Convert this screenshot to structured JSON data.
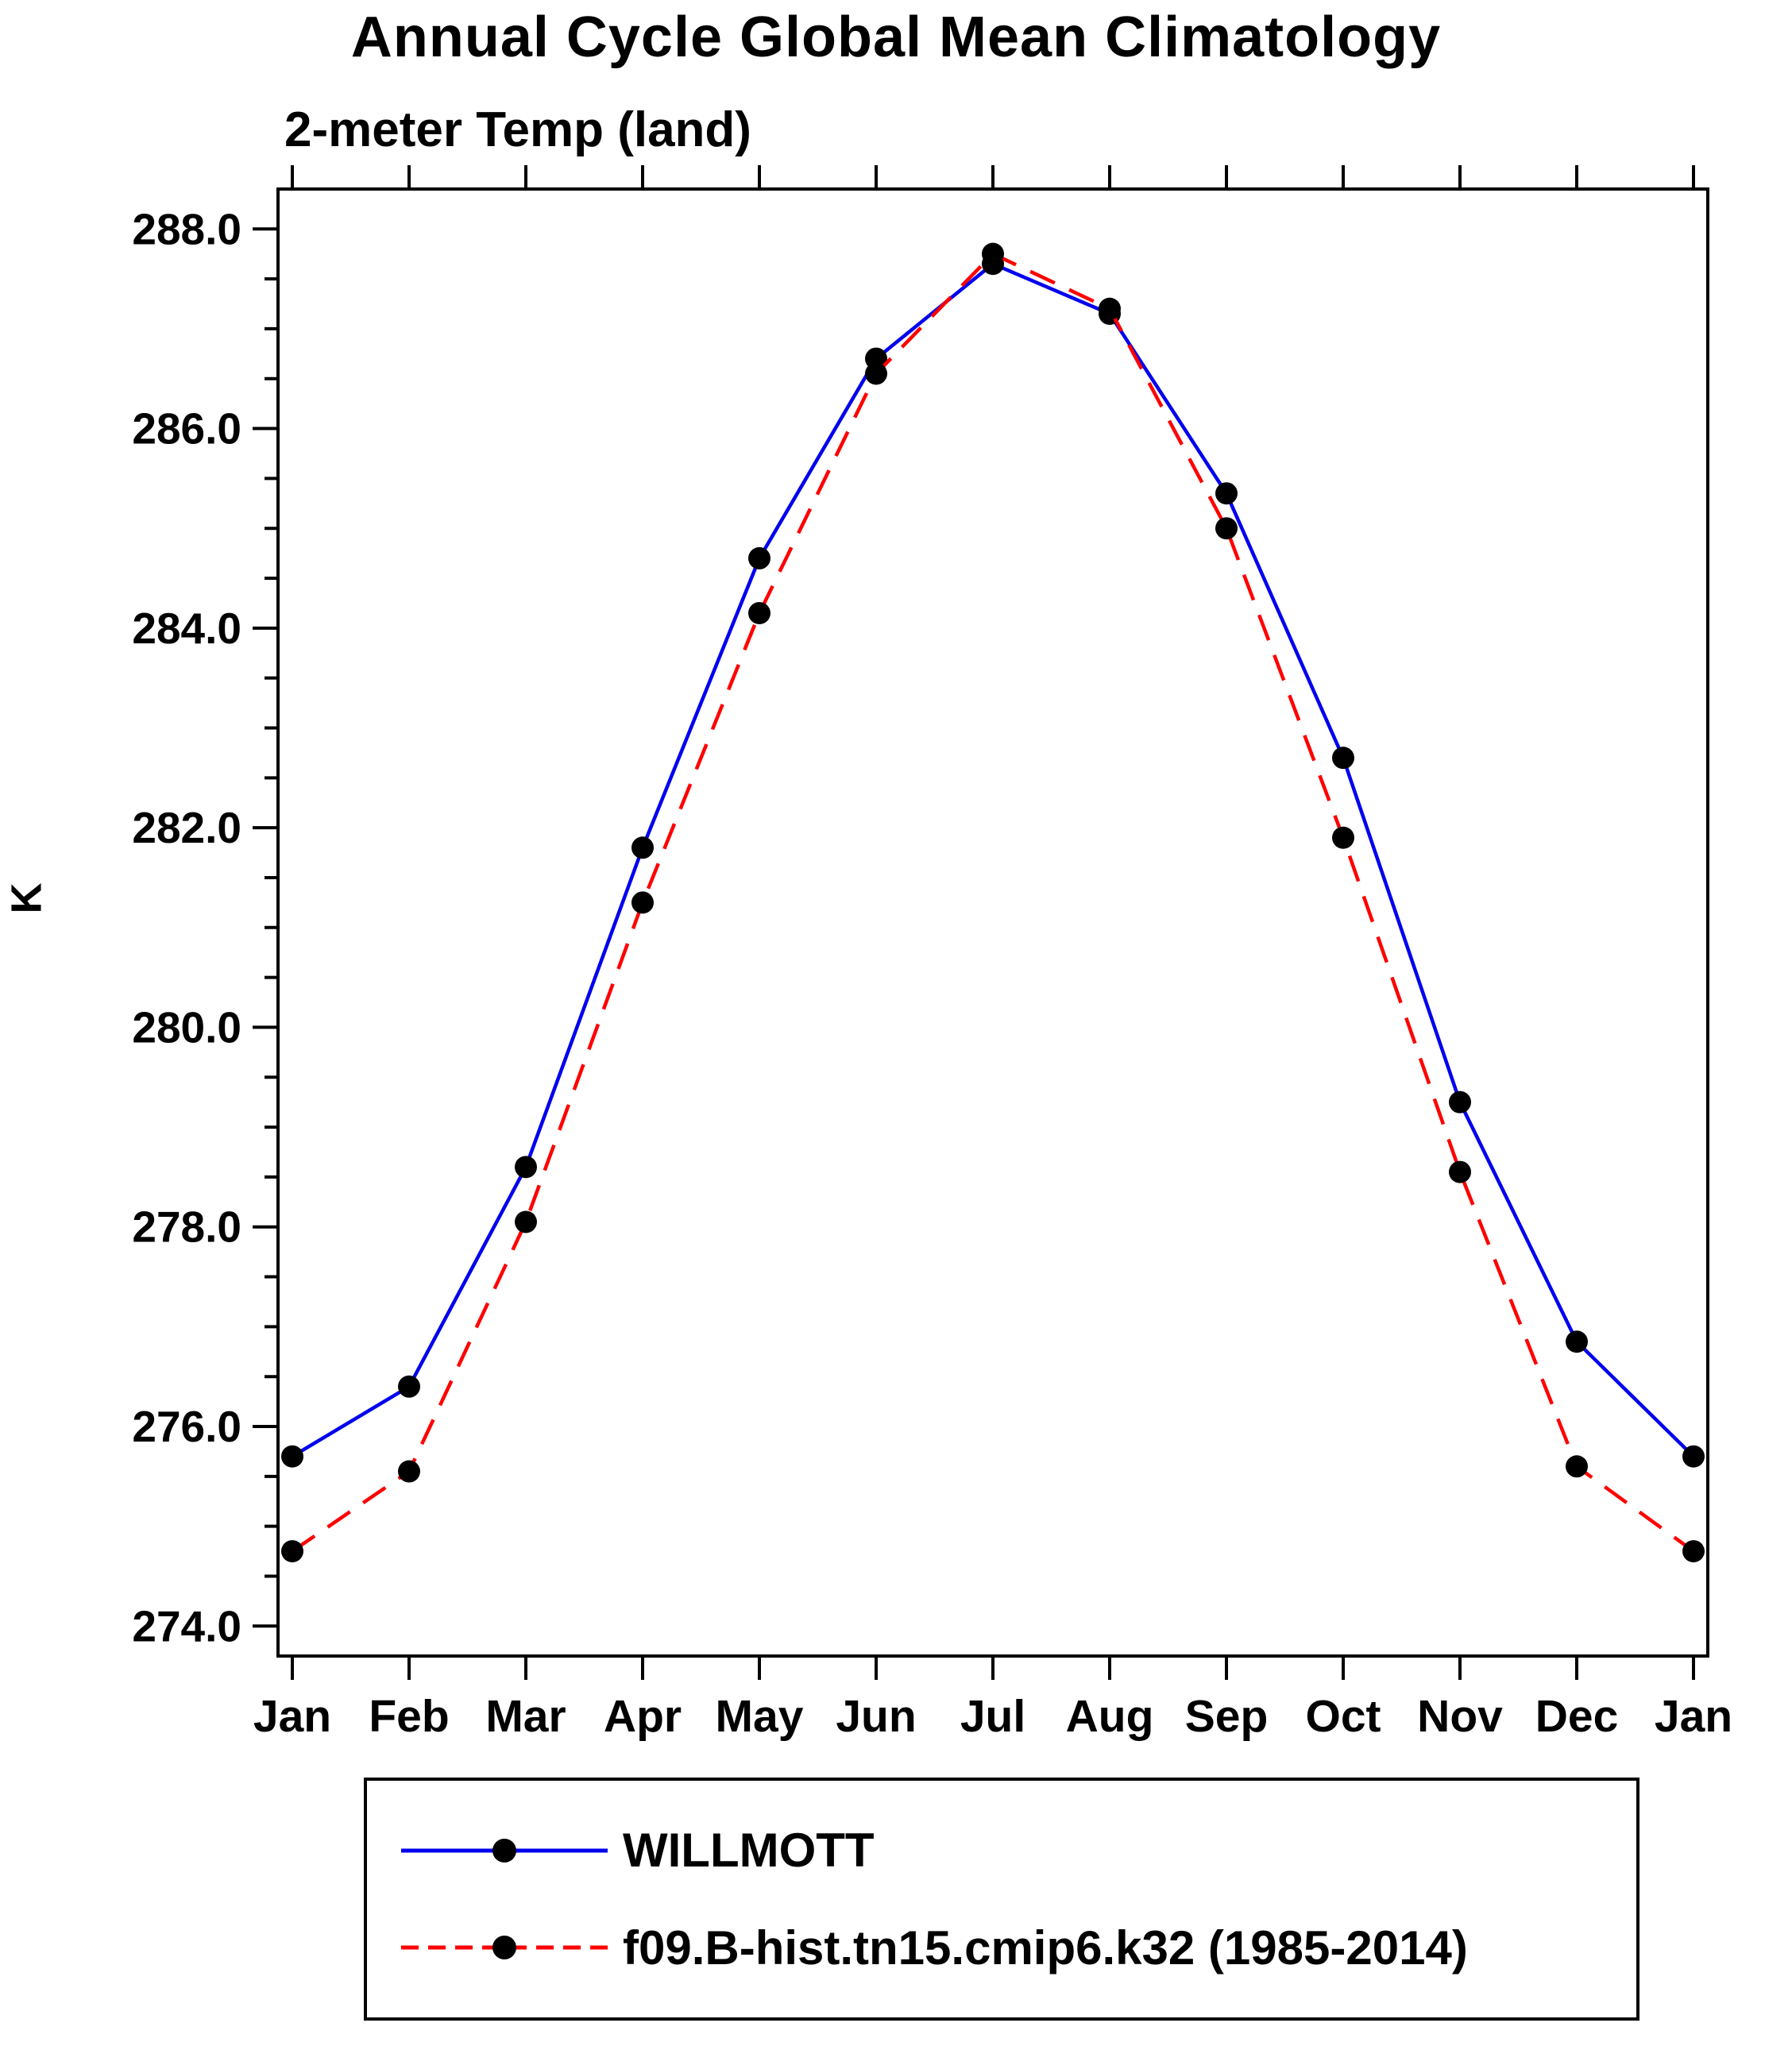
{
  "chart_data": {
    "type": "line",
    "title": "Annual Cycle Global Mean Climatology",
    "subtitle": "2-meter Temp (land)",
    "ylabel": "K",
    "xlabel": "",
    "categories": [
      "Jan",
      "Feb",
      "Mar",
      "Apr",
      "May",
      "Jun",
      "Jul",
      "Aug",
      "Sep",
      "Oct",
      "Nov",
      "Dec",
      "Jan"
    ],
    "ylim": [
      273.7,
      288.4
    ],
    "yticks": {
      "start": 274.0,
      "end": 288.0,
      "major": 2.0,
      "minor": 0.5,
      "decimals": 1
    },
    "grid": false,
    "legend_position": "bottom",
    "marker_color": "#000000",
    "series": [
      {
        "name": "WILLMOTT",
        "color": "#0000ee",
        "dash": "",
        "values": [
          275.7,
          276.4,
          278.6,
          281.8,
          284.7,
          286.7,
          287.65,
          287.15,
          285.35,
          282.7,
          279.25,
          276.85,
          275.7
        ]
      },
      {
        "name": "f09.B-hist.tn15.cmip6.k32 (1985-2014)",
        "color": "#ff0000",
        "dash": "34 20",
        "values": [
          274.75,
          275.55,
          278.05,
          281.25,
          284.15,
          286.55,
          287.75,
          287.2,
          285.0,
          281.9,
          278.55,
          275.6,
          274.75
        ]
      }
    ]
  }
}
